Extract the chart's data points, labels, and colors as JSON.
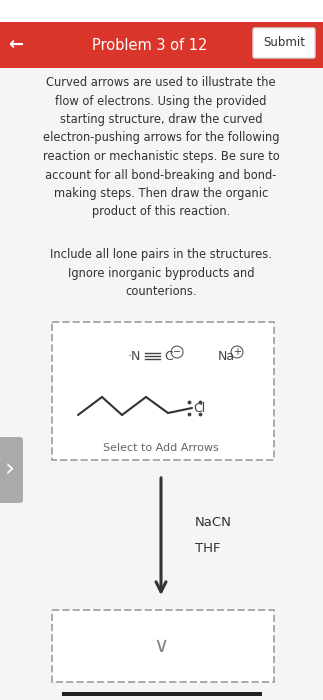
{
  "bg_color": "#f5f5f5",
  "header_color": "#d9352a",
  "header_text": "Problem 3 of 12",
  "header_text_color": "#ffffff",
  "submit_text": "Submit",
  "back_arrow": "←",
  "body_text": "Curved arrows are used to illustrate the\nflow of electrons. Using the provided\nstarting structure, draw the curved\nelectron-pushing arrows for the following\nreaction or mechanistic steps. Be sure to\naccount for all bond-breaking and bond-\nmaking steps. Then draw the organic\nproduct of this reaction.",
  "body_text2": "Include all lone pairs in the structures.\nIgnore inorganic byproducts and\ncounterions.",
  "select_text": "Select to Add Arrows",
  "reagent1": "NaCN",
  "reagent2": "THF",
  "text_color": "#333333",
  "dashed_box_color": "#aaaaaa",
  "arrow_color": "#333333",
  "sidebar_color": "#aaaaaa",
  "bottom_bar_color": "#222222"
}
